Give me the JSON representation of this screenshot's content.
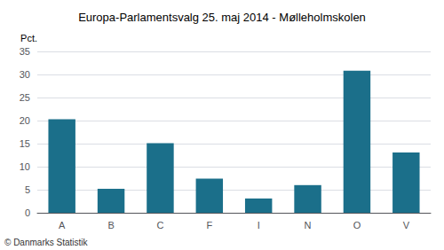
{
  "chart_data": {
    "type": "bar",
    "title": "Europa-Parlamentsvalg 25. maj 2014 - Mølleholmskolen",
    "categories": [
      "A",
      "B",
      "C",
      "F",
      "I",
      "N",
      "O",
      "V"
    ],
    "values": [
      20.3,
      5.2,
      15.1,
      7.4,
      3.1,
      6.0,
      30.8,
      13.1
    ],
    "color": "#1b6f8a",
    "ylabel": "Pct.",
    "ylim": [
      0,
      35
    ],
    "yticks": [
      0,
      5,
      10,
      15,
      20,
      25,
      30,
      35
    ],
    "grid": true,
    "footer": "© Danmarks Statistik"
  }
}
